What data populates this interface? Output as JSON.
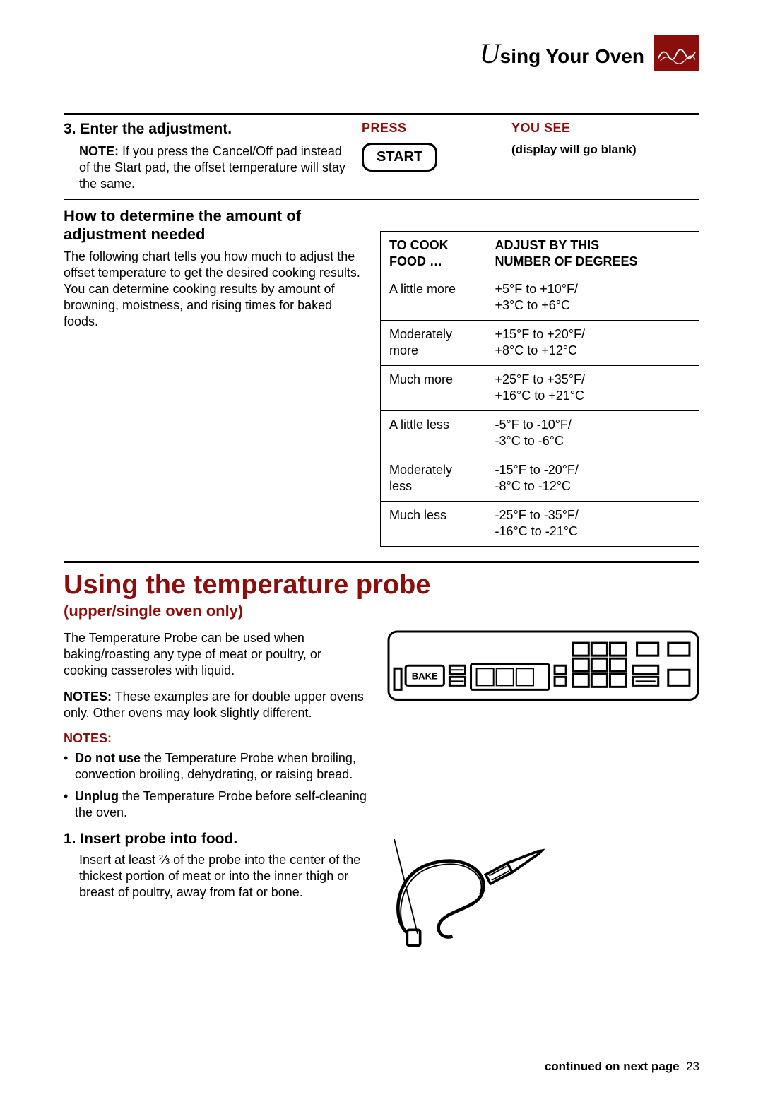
{
  "header": {
    "title_prefix": "U",
    "title_rest": "sing Your Oven"
  },
  "section1": {
    "step_heading": "3. Enter the adjustment.",
    "note_bold": "NOTE:",
    "note_text": " If you press the Cancel/Off pad instead of the Start pad, the offset temperature will stay the same.",
    "press_label": "PRESS",
    "start_label": "START",
    "yousee_label": "YOU SEE",
    "yousee_text": "(display will go blank)"
  },
  "section2": {
    "heading": "How to determine the amount of adjustment needed",
    "paragraph": "The following chart tells you how much to adjust the offset temperature to get the desired cooking results. You can determine cooking results by amount of browning, moistness, and rising times for baked foods.",
    "table": {
      "head_col1_l1": "TO COOK",
      "head_col1_l2": "FOOD …",
      "head_col2_l1": "ADJUST BY THIS",
      "head_col2_l2": "NUMBER OF DEGREES",
      "rows": [
        {
          "c1": "A little more",
          "c2l1": "+5°F to +10°F/",
          "c2l2": "+3°C to +6°C"
        },
        {
          "c1": "Moderately more",
          "c2l1": "+15°F to +20°F/",
          "c2l2": "+8°C to +12°C"
        },
        {
          "c1": "Much more",
          "c2l1": "+25°F to +35°F/",
          "c2l2": "+16°C to +21°C"
        },
        {
          "c1": "A little less",
          "c2l1": "-5°F to -10°F/",
          "c2l2": "-3°C to -6°C"
        },
        {
          "c1": "Moderately less",
          "c2l1": "-15°F to -20°F/",
          "c2l2": "-8°C to -12°C"
        },
        {
          "c1": "Much less",
          "c2l1": "-25°F to -35°F/",
          "c2l2": "-16°C to -21°C"
        }
      ]
    }
  },
  "probe": {
    "heading": "Using the temperature probe",
    "subheading": "(upper/single oven only)",
    "para1": "The Temperature Probe can be used when baking/roasting any type of meat or poultry, or cooking casseroles with liquid.",
    "para2_bold": "NOTES:",
    "para2_rest": " These examples are for double upper ovens only. Other ovens may look slightly different.",
    "notes_label": "NOTES:",
    "bullet1_bold": "Do not use",
    "bullet1_rest": " the Temperature Probe when broiling, convection broiling, dehydrating, or raising bread.",
    "bullet2_bold": "Unplug",
    "bullet2_rest": " the Temperature Probe before self-cleaning the oven.",
    "step1_head": "1. Insert probe into food.",
    "step1_body": "Insert at least ⅔ of the probe into the center of the thickest portion of meat or into the inner thigh or breast of poultry, away from fat or bone.",
    "panel_bake_label": "BAKE"
  },
  "footer": {
    "cont": "continued on next page",
    "page": "23"
  },
  "colors": {
    "accent": "#8a0f0c"
  }
}
